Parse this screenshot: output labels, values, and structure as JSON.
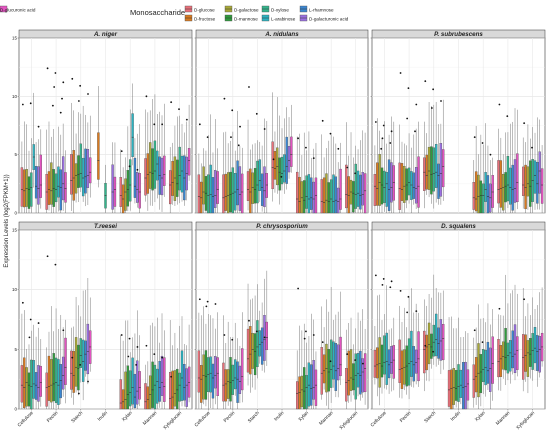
{
  "chart_data": {
    "type": "boxplot",
    "legend": {
      "title": "Monosaccharide",
      "position": "top",
      "entries": [
        {
          "label": "D-glucose",
          "color": "#e8707a"
        },
        {
          "label": "D-fructose",
          "color": "#d87a20"
        },
        {
          "label": "D-galactose",
          "color": "#a8a838"
        },
        {
          "label": "D-mannose",
          "color": "#2f9a3c"
        },
        {
          "label": "D-xylose",
          "color": "#34b48c"
        },
        {
          "label": "L-arabinose",
          "color": "#2cb2c0"
        },
        {
          "label": "L-rhamnose",
          "color": "#3b86d0"
        },
        {
          "label": "D-galacturonic acid",
          "color": "#9a6fe0"
        },
        {
          "label": "D-glucuronic acid",
          "color": "#e254c0"
        }
      ]
    },
    "ylabel": "Expression Levels (log2(FPKM+1))",
    "ylim": [
      0,
      15
    ],
    "yticks": [
      0,
      5,
      10,
      15
    ],
    "categories": [
      "Cellulose",
      "Pectin",
      "Starch",
      "Inulin",
      "Xylan",
      "Mannan",
      "Xyloglucan"
    ],
    "grid": true,
    "panels": [
      {
        "title": "A. niger",
        "medians": [
          [
            2.0,
            1.9,
            2.1,
            2.0,
            2.2,
            4.8,
            2.3,
            2.1,
            2.4
          ],
          [
            1.8,
            2.0,
            1.9,
            2.1,
            2.0,
            2.3,
            2.2,
            2.5,
            2.1
          ],
          [
            2.8,
            3.0,
            3.2,
            3.3,
            3.4,
            3.0,
            3.1,
            3.2,
            3.5
          ],
          [
            null,
            4.5,
            null,
            null,
            1.5,
            null,
            null,
            1.8,
            2.0
          ],
          [
            1.5,
            1.2,
            1.8,
            2.0,
            2.4,
            6.5,
            2.3,
            2.0,
            1.8
          ],
          [
            3.0,
            3.3,
            3.5,
            3.4,
            3.6,
            4.2,
            3.2,
            3.0,
            3.3
          ],
          [
            2.4,
            2.6,
            3.0,
            2.5,
            3.2,
            3.6,
            3.0,
            3.4,
            4.5
          ]
        ],
        "outliers": [
          [
            9.3,
            9.4,
            7.4
          ],
          [
            12.4,
            12.0,
            11.2,
            10.8,
            9.8,
            9.2,
            8.6
          ],
          [
            11.5,
            10.9,
            10.2,
            9.6
          ],
          [],
          [
            5.3,
            4.0,
            3.7
          ],
          [
            10.0,
            7.6,
            7.6
          ],
          [
            9.5,
            8.9,
            8.0
          ]
        ]
      },
      {
        "title": "A. nidulans",
        "medians": [
          [
            1.4,
            1.3,
            1.8,
            1.7,
            1.5,
            1.6,
            1.4,
            1.5,
            2.0
          ],
          [
            1.3,
            1.4,
            1.5,
            1.6,
            1.7,
            1.8,
            2.0,
            1.6,
            1.8
          ],
          [
            2.0,
            1.8,
            2.2,
            2.0,
            2.4,
            2.8,
            2.2,
            1.9,
            2.4
          ],
          [
            3.9,
            3.8,
            4.0,
            3.5,
            3.4,
            3.6,
            4.0,
            4.5,
            5.0
          ],
          [
            1.2,
            1.0,
            1.3,
            1.1,
            1.4,
            1.2,
            1.3,
            1.2,
            1.5
          ],
          [
            1.0,
            0.9,
            1.1,
            1.0,
            1.2,
            1.0,
            1.1,
            1.0,
            1.2
          ],
          [
            1.6,
            1.5,
            1.8,
            1.7,
            1.6,
            1.7,
            1.5,
            1.6,
            1.9
          ]
        ],
        "outliers": [
          [
            7.6,
            6.5
          ],
          [
            9.8,
            8.8,
            7.4,
            6.5,
            5.8
          ],
          [
            10.8,
            8.5,
            7.2
          ],
          [
            4.6,
            3.1
          ],
          [
            6.4,
            5.6,
            4.7
          ],
          [
            7.9,
            6.8,
            5.5
          ],
          [
            3.9,
            3.4
          ]
        ]
      },
      {
        "title": "P. subrubescens",
        "medians": [
          [
            2.3,
            2.1,
            2.6,
            2.4,
            2.2,
            2.5,
            2.0,
            2.2,
            2.6
          ],
          [
            2.1,
            2.0,
            2.3,
            2.4,
            2.6,
            2.4,
            2.2,
            2.1,
            2.3
          ],
          [
            3.5,
            3.2,
            3.6,
            3.3,
            3.4,
            3.5,
            3.2,
            3.4,
            4.0
          ],
          [
            null,
            null,
            null,
            null,
            null,
            null,
            null,
            null,
            null
          ],
          [
            1.3,
            1.2,
            1.4,
            1.5,
            1.5,
            2.0,
            1.4,
            1.3,
            1.8
          ],
          [
            2.0,
            2.1,
            2.2,
            2.3,
            2.4,
            2.2,
            2.0,
            2.1,
            2.6
          ],
          [
            2.4,
            2.2,
            2.5,
            2.3,
            2.8,
            3.2,
            2.5,
            3.6,
            2.4
          ]
        ],
        "outliers": [
          [
            7.8,
            7.5,
            7.0,
            6.4,
            6.0,
            5.5
          ],
          [
            12.0,
            10.7,
            9.3,
            8.1,
            7.0
          ],
          [
            11.3,
            10.6,
            9.6,
            9.0
          ],
          [],
          [
            6.5,
            6.0,
            5.0
          ],
          [
            9.3,
            8.3
          ],
          [
            7.7,
            5.6
          ]
        ]
      },
      {
        "title": "T.reesei",
        "medians": [
          [
            2.0,
            1.8,
            2.2,
            2.0,
            1.9,
            2.1,
            2.0,
            1.8,
            2.2
          ],
          [
            1.8,
            1.9,
            2.0,
            2.1,
            2.2,
            2.0,
            2.4,
            2.8,
            3.5
          ],
          [
            3.0,
            2.8,
            3.5,
            3.4,
            4.5,
            4.0,
            4.6,
            4.8,
            5.2
          ],
          [
            null,
            null,
            null,
            null,
            null,
            null,
            null,
            null,
            null
          ],
          [
            0.5,
            0.6,
            0.8,
            1.2,
            1.4,
            1.8,
            1.0,
            1.5,
            1.8
          ],
          [
            0.6,
            0.8,
            1.2,
            1.6,
            2.0,
            2.3,
            1.8,
            2.2,
            1.9
          ],
          [
            0.9,
            1.0,
            1.3,
            1.6,
            2.0,
            2.6,
            1.8,
            2.0,
            2.2
          ]
        ],
        "outliers": [
          [
            8.9,
            7.5,
            7.2,
            6.0
          ],
          [
            12.8,
            12.1,
            6.6
          ],
          [
            4.3,
            3.7,
            2.3,
            1.3
          ],
          [],
          [
            6.2,
            5.9,
            5.2,
            4.4,
            3.7
          ],
          [
            5.3,
            4.6,
            4.3
          ],
          [
            2.7
          ]
        ]
      },
      {
        "title": "P. chrysosporium",
        "medians": [
          [
            2.6,
            2.5,
            2.8,
            2.7,
            2.9,
            3.0,
            2.6,
            2.8,
            3.0
          ],
          [
            2.0,
            2.1,
            2.3,
            2.2,
            2.4,
            2.6,
            2.5,
            2.3,
            2.7
          ],
          [
            4.2,
            4.6,
            5.0,
            4.8,
            5.2,
            5.4,
            5.6,
            5.8,
            6.0
          ],
          [
            null,
            null,
            null,
            null,
            null,
            null,
            null,
            null,
            null
          ],
          [
            1.3,
            1.4,
            1.6,
            1.5,
            1.8,
            2.0,
            1.7,
            1.8,
            2.0
          ],
          [
            3.0,
            3.2,
            3.4,
            3.1,
            3.3,
            3.6,
            3.2,
            3.4,
            3.7
          ],
          [
            2.2,
            2.4,
            2.6,
            2.5,
            2.8,
            3.0,
            2.8,
            3.1,
            3.4
          ]
        ],
        "outliers": [
          [
            9.2,
            9.0,
            8.8,
            8.6
          ],
          [
            6.2,
            5.8
          ],
          [
            7.4,
            6.5,
            6.0
          ],
          [],
          [
            10.1,
            6.5,
            6.2,
            5.9
          ],
          [
            5.6,
            4.0
          ],
          [
            4.6,
            4.1,
            3.8
          ]
        ]
      },
      {
        "title": "D. squalens",
        "medians": [
          [
            3.6,
            3.7,
            3.8,
            3.6,
            3.9,
            4.0,
            3.7,
            3.9,
            4.1
          ],
          [
            3.3,
            3.4,
            3.5,
            3.6,
            3.8,
            4.0,
            3.7,
            3.9,
            4.2
          ],
          [
            5.0,
            5.2,
            5.4,
            5.2,
            5.6,
            5.8,
            5.5,
            5.7,
            5.9
          ],
          [
            1.6,
            1.7,
            1.8,
            1.7,
            1.9,
            2.0,
            1.8,
            1.9,
            2.1
          ],
          [
            2.5,
            2.7,
            3.0,
            3.1,
            3.3,
            3.5,
            3.2,
            3.4,
            3.8
          ],
          [
            4.0,
            4.2,
            4.4,
            4.3,
            4.5,
            4.7,
            4.4,
            4.6,
            4.9
          ],
          [
            4.3,
            4.5,
            4.7,
            4.6,
            4.9,
            5.1,
            4.8,
            5.0,
            5.2
          ]
        ],
        "outliers": [
          [
            11.2,
            10.9,
            10.7,
            10.4,
            10.2
          ],
          [
            9.9,
            9.4,
            8.2,
            8.1
          ],
          [
            5.3,
            4.8
          ],
          [],
          [
            6.6,
            5.6
          ],
          [
            8.4
          ],
          [
            9.2
          ]
        ]
      }
    ]
  }
}
